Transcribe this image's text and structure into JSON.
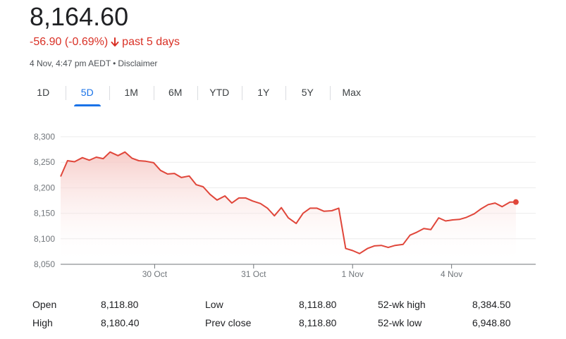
{
  "quote": {
    "price": "8,164.60",
    "change": "-56.90 (-0.69%)",
    "period": "past 5 days",
    "timestamp": "4 Nov, 4:47 pm AEDT",
    "separator": "•",
    "disclaimer": "Disclaimer"
  },
  "tabs": [
    {
      "label": "1D",
      "active": false
    },
    {
      "label": "5D",
      "active": true
    },
    {
      "label": "1M",
      "active": false
    },
    {
      "label": "6M",
      "active": false
    },
    {
      "label": "YTD",
      "active": false
    },
    {
      "label": "1Y",
      "active": false
    },
    {
      "label": "5Y",
      "active": false
    },
    {
      "label": "Max",
      "active": false
    }
  ],
  "colors": {
    "line": "#e0463a",
    "fill": "#f5c4c0",
    "negative": "#d93025",
    "accent": "#1a73e8",
    "grid": "#ebebeb",
    "axis": "#70757a"
  },
  "stats": [
    {
      "label": "Open",
      "value": "8,118.80"
    },
    {
      "label": "Low",
      "value": "8,118.80"
    },
    {
      "label": "52-wk high",
      "value": "8,384.50"
    },
    {
      "label": "High",
      "value": "8,180.40"
    },
    {
      "label": "Prev close",
      "value": "8,118.80"
    },
    {
      "label": "52-wk low",
      "value": "6,948.80"
    }
  ],
  "chart_data": {
    "type": "area",
    "y_ticks": [
      "8,300",
      "8,250",
      "8,200",
      "8,150",
      "8,100",
      "8,050"
    ],
    "y_tick_values": [
      8300,
      8250,
      8200,
      8150,
      8100,
      8050
    ],
    "ylim": [
      8050,
      8300
    ],
    "x_ticks": [
      {
        "label": "30 Oct",
        "x": 9.5
      },
      {
        "label": "31 Oct",
        "x": 19.5
      },
      {
        "label": "1 Nov",
        "x": 29.5
      },
      {
        "label": "4 Nov",
        "x": 39.5
      }
    ],
    "xlim": [
      0,
      48
    ],
    "grid": true,
    "series": [
      {
        "values": [
          {
            "x": 0,
            "y": 8222
          },
          {
            "x": 0.7,
            "y": 8253
          },
          {
            "x": 1.4,
            "y": 8251
          },
          {
            "x": 2.2,
            "y": 8259
          },
          {
            "x": 2.9,
            "y": 8254
          },
          {
            "x": 3.6,
            "y": 8260
          },
          {
            "x": 4.3,
            "y": 8257
          },
          {
            "x": 5.0,
            "y": 8270
          },
          {
            "x": 5.8,
            "y": 8263
          },
          {
            "x": 6.5,
            "y": 8270
          },
          {
            "x": 7.2,
            "y": 8258
          },
          {
            "x": 7.9,
            "y": 8253
          },
          {
            "x": 8.6,
            "y": 8252
          },
          {
            "x": 9.4,
            "y": 8249
          },
          {
            "x": 10.1,
            "y": 8234
          },
          {
            "x": 10.8,
            "y": 8227
          },
          {
            "x": 11.5,
            "y": 8228
          },
          {
            "x": 12.2,
            "y": 8220
          },
          {
            "x": 13.0,
            "y": 8223
          },
          {
            "x": 13.7,
            "y": 8206
          },
          {
            "x": 14.4,
            "y": 8202
          },
          {
            "x": 15.1,
            "y": 8187
          },
          {
            "x": 15.8,
            "y": 8176
          },
          {
            "x": 16.6,
            "y": 8184
          },
          {
            "x": 17.3,
            "y": 8170
          },
          {
            "x": 18.0,
            "y": 8180
          },
          {
            "x": 18.7,
            "y": 8180
          },
          {
            "x": 19.4,
            "y": 8174
          },
          {
            "x": 20.2,
            "y": 8169
          },
          {
            "x": 20.9,
            "y": 8160
          },
          {
            "x": 21.6,
            "y": 8145
          },
          {
            "x": 22.3,
            "y": 8161
          },
          {
            "x": 23.0,
            "y": 8141
          },
          {
            "x": 23.8,
            "y": 8130
          },
          {
            "x": 24.5,
            "y": 8150
          },
          {
            "x": 25.2,
            "y": 8160
          },
          {
            "x": 25.9,
            "y": 8160
          },
          {
            "x": 26.6,
            "y": 8154
          },
          {
            "x": 27.4,
            "y": 8155
          },
          {
            "x": 28.1,
            "y": 8160
          },
          {
            "x": 28.8,
            "y": 8081
          },
          {
            "x": 29.5,
            "y": 8077
          },
          {
            "x": 30.2,
            "y": 8071
          },
          {
            "x": 31.0,
            "y": 8081
          },
          {
            "x": 31.7,
            "y": 8086
          },
          {
            "x": 32.4,
            "y": 8087
          },
          {
            "x": 33.1,
            "y": 8083
          },
          {
            "x": 33.8,
            "y": 8087
          },
          {
            "x": 34.6,
            "y": 8089
          },
          {
            "x": 35.3,
            "y": 8107
          },
          {
            "x": 36.0,
            "y": 8113
          },
          {
            "x": 36.7,
            "y": 8120
          },
          {
            "x": 37.4,
            "y": 8118
          },
          {
            "x": 38.2,
            "y": 8141
          },
          {
            "x": 38.9,
            "y": 8135
          },
          {
            "x": 39.6,
            "y": 8137
          },
          {
            "x": 40.3,
            "y": 8138
          },
          {
            "x": 41.0,
            "y": 8142
          },
          {
            "x": 41.8,
            "y": 8149
          },
          {
            "x": 42.5,
            "y": 8159
          },
          {
            "x": 43.2,
            "y": 8167
          },
          {
            "x": 43.9,
            "y": 8170
          },
          {
            "x": 44.6,
            "y": 8163
          },
          {
            "x": 45.4,
            "y": 8172
          },
          {
            "x": 46.0,
            "y": 8172
          }
        ]
      }
    ]
  }
}
